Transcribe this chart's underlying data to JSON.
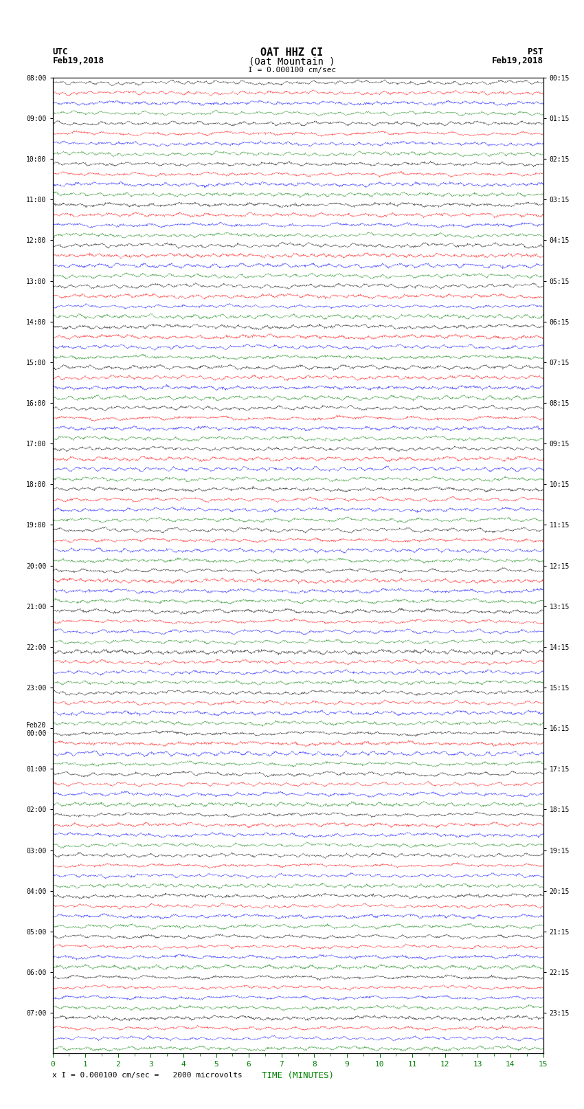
{
  "title_line1": "OAT HHZ CI",
  "title_line2": "(Oat Mountain )",
  "scale_label": "I = 0.000100 cm/sec",
  "footer_label": "x I = 0.000100 cm/sec =   2000 microvolts",
  "utc_label": "UTC",
  "utc_date": "Feb19,2018",
  "pst_label": "PST",
  "pst_date": "Feb19,2018",
  "xlabel": "TIME (MINUTES)",
  "left_times": [
    "08:00",
    "09:00",
    "10:00",
    "11:00",
    "12:00",
    "13:00",
    "14:00",
    "15:00",
    "16:00",
    "17:00",
    "18:00",
    "19:00",
    "20:00",
    "21:00",
    "22:00",
    "23:00",
    "Feb20\n00:00",
    "01:00",
    "02:00",
    "03:00",
    "04:00",
    "05:00",
    "06:00",
    "07:00"
  ],
  "right_times": [
    "00:15",
    "01:15",
    "02:15",
    "03:15",
    "04:15",
    "05:15",
    "06:15",
    "07:15",
    "08:15",
    "09:15",
    "10:15",
    "11:15",
    "12:15",
    "13:15",
    "14:15",
    "15:15",
    "16:15",
    "17:15",
    "18:15",
    "19:15",
    "20:15",
    "21:15",
    "22:15",
    "23:15"
  ],
  "n_rows": 24,
  "traces_per_row": 4,
  "colors": [
    "black",
    "red",
    "blue",
    "green"
  ],
  "bg_color": "white",
  "trace_amplitude": 0.35,
  "noise_freq": 80,
  "fig_width": 8.5,
  "fig_height": 16.13,
  "xlim": [
    0,
    15
  ],
  "xticks": [
    0,
    1,
    2,
    3,
    4,
    5,
    6,
    7,
    8,
    9,
    10,
    11,
    12,
    13,
    14,
    15
  ],
  "title_fontsize": 11,
  "label_fontsize": 9,
  "tick_fontsize": 8,
  "trace_color_sequence": [
    "black",
    "red",
    "blue",
    "green"
  ]
}
